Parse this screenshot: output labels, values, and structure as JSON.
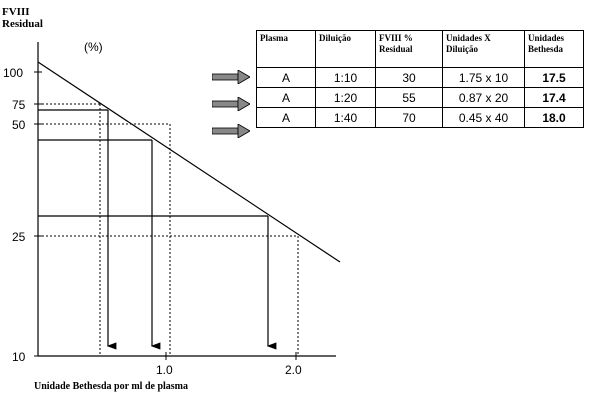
{
  "y_axis": {
    "title_line1": "FVIII",
    "title_line2": "Residual",
    "unit": "(%)",
    "ticks": [
      "100",
      "75",
      "50",
      "25",
      "10"
    ]
  },
  "x_axis": {
    "title": "Unidade Bethesda por ml de plasma",
    "ticks": [
      "1.0",
      "2.0"
    ]
  },
  "table": {
    "headers": [
      "Plasma",
      "Diluição",
      "FVIII % Residual",
      "Unidades X Diluição",
      "Unidades Bethesda"
    ],
    "rows": [
      [
        "A",
        "1:10",
        "30",
        "1.75 x 10",
        "17.5"
      ],
      [
        "A",
        "1:20",
        "55",
        "0.87 x 20",
        "17.4"
      ],
      [
        "A",
        "1:40",
        "70",
        "0.45 x 40",
        "18.0"
      ]
    ]
  },
  "chart_data": {
    "type": "line",
    "xlabel": "Unidade Bethesda por ml de plasma",
    "ylabel": "FVIII Residual (%)",
    "y_scale": "log",
    "x_ticks": [
      1.0,
      2.0
    ],
    "y_ticks": [
      10,
      25,
      50,
      75,
      100
    ],
    "series": [
      {
        "x": [
          0,
          2.3
        ],
        "y": [
          100,
          20
        ]
      }
    ],
    "readings": [
      {
        "y": 70,
        "x": 0.45
      },
      {
        "y": 55,
        "x": 0.87
      },
      {
        "y": 30,
        "x": 1.75
      }
    ]
  }
}
